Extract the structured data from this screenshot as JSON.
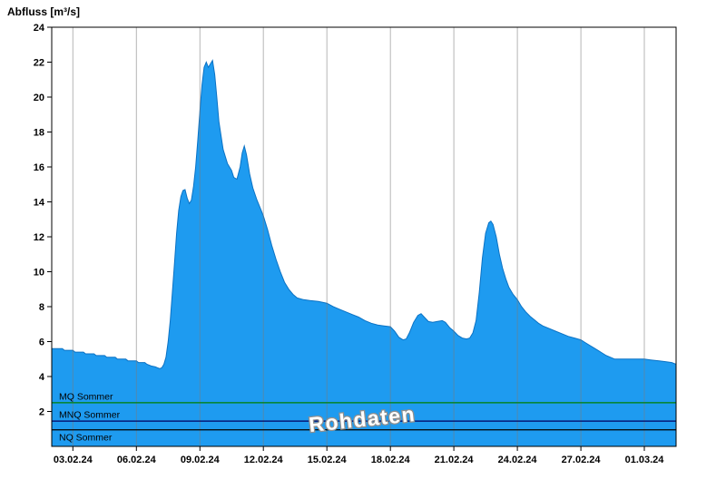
{
  "chart_data": {
    "type": "area",
    "title": "",
    "ylabel": "Abfluss [m³/s]",
    "xlabel": "",
    "ylim": [
      0,
      24
    ],
    "yticks": [
      2,
      4,
      6,
      8,
      10,
      12,
      14,
      16,
      18,
      20,
      22,
      24
    ],
    "xlim_days": [
      0,
      29.5
    ],
    "x_categories": [
      "03.02.24",
      "06.02.24",
      "09.02.24",
      "12.02.24",
      "15.02.24",
      "18.02.24",
      "21.02.24",
      "24.02.24",
      "27.02.24",
      "01.03.24"
    ],
    "x_category_days": [
      1,
      4,
      7,
      10,
      13,
      16,
      19,
      22,
      25,
      28
    ],
    "grid": "vertical-only",
    "legend": "none",
    "watermark": "Rohdaten",
    "fill_color": "#1e9bf0",
    "edge_color": "#0b72c4",
    "grid_color": "#7a7a7a",
    "reference_lines": [
      {
        "label": "MQ Sommer",
        "value": 2.5,
        "color": "#008000",
        "label_side": "above"
      },
      {
        "label": "MNQ Sommer",
        "value": 1.45,
        "color": "#000060",
        "label_side": "above"
      },
      {
        "label": "NQ Sommer",
        "value": 0.95,
        "color": "#000000",
        "label_side": "below"
      }
    ],
    "series": [
      {
        "name": "Abfluss",
        "points": [
          [
            0,
            5.6
          ],
          [
            0.5,
            5.6
          ],
          [
            0.6,
            5.5
          ],
          [
            1.0,
            5.5
          ],
          [
            1.1,
            5.4
          ],
          [
            1.5,
            5.4
          ],
          [
            1.6,
            5.3
          ],
          [
            2.0,
            5.3
          ],
          [
            2.1,
            5.2
          ],
          [
            2.5,
            5.2
          ],
          [
            2.6,
            5.1
          ],
          [
            3.0,
            5.1
          ],
          [
            3.1,
            5.0
          ],
          [
            3.5,
            5.0
          ],
          [
            3.6,
            4.9
          ],
          [
            4.0,
            4.9
          ],
          [
            4.1,
            4.8
          ],
          [
            4.4,
            4.8
          ],
          [
            4.5,
            4.7
          ],
          [
            4.7,
            4.6
          ],
          [
            4.9,
            4.55
          ],
          [
            5.0,
            4.5
          ],
          [
            5.1,
            4.45
          ],
          [
            5.2,
            4.5
          ],
          [
            5.3,
            4.7
          ],
          [
            5.4,
            5.1
          ],
          [
            5.5,
            6.0
          ],
          [
            5.6,
            7.2
          ],
          [
            5.7,
            8.8
          ],
          [
            5.8,
            10.5
          ],
          [
            5.9,
            12.2
          ],
          [
            6.0,
            13.5
          ],
          [
            6.1,
            14.3
          ],
          [
            6.2,
            14.65
          ],
          [
            6.3,
            14.7
          ],
          [
            6.4,
            14.2
          ],
          [
            6.5,
            13.9
          ],
          [
            6.6,
            14.1
          ],
          [
            6.7,
            14.9
          ],
          [
            6.8,
            16.0
          ],
          [
            6.9,
            17.5
          ],
          [
            7.0,
            19.2
          ],
          [
            7.1,
            20.7
          ],
          [
            7.2,
            21.7
          ],
          [
            7.3,
            22.0
          ],
          [
            7.4,
            21.7
          ],
          [
            7.5,
            21.9
          ],
          [
            7.6,
            22.1
          ],
          [
            7.7,
            21.3
          ],
          [
            7.8,
            20.0
          ],
          [
            7.9,
            18.6
          ],
          [
            8.1,
            17.0
          ],
          [
            8.3,
            16.2
          ],
          [
            8.5,
            15.8
          ],
          [
            8.6,
            15.4
          ],
          [
            8.75,
            15.3
          ],
          [
            8.9,
            16.0
          ],
          [
            9.0,
            16.8
          ],
          [
            9.1,
            17.2
          ],
          [
            9.2,
            16.7
          ],
          [
            9.35,
            15.6
          ],
          [
            9.5,
            14.8
          ],
          [
            9.7,
            14.1
          ],
          [
            9.9,
            13.5
          ],
          [
            10.0,
            13.2
          ],
          [
            10.2,
            12.4
          ],
          [
            10.4,
            11.5
          ],
          [
            10.6,
            10.7
          ],
          [
            10.8,
            10.0
          ],
          [
            11.0,
            9.4
          ],
          [
            11.2,
            9.0
          ],
          [
            11.4,
            8.7
          ],
          [
            11.6,
            8.5
          ],
          [
            11.9,
            8.4
          ],
          [
            12.2,
            8.35
          ],
          [
            12.6,
            8.3
          ],
          [
            13.0,
            8.2
          ],
          [
            13.3,
            8.0
          ],
          [
            13.6,
            7.85
          ],
          [
            13.9,
            7.7
          ],
          [
            14.2,
            7.55
          ],
          [
            14.5,
            7.4
          ],
          [
            14.8,
            7.2
          ],
          [
            15.1,
            7.05
          ],
          [
            15.4,
            6.95
          ],
          [
            15.7,
            6.9
          ],
          [
            16.0,
            6.85
          ],
          [
            16.2,
            6.6
          ],
          [
            16.4,
            6.25
          ],
          [
            16.6,
            6.1
          ],
          [
            16.75,
            6.15
          ],
          [
            16.9,
            6.5
          ],
          [
            17.1,
            7.1
          ],
          [
            17.3,
            7.5
          ],
          [
            17.45,
            7.6
          ],
          [
            17.6,
            7.4
          ],
          [
            17.8,
            7.15
          ],
          [
            18.0,
            7.1
          ],
          [
            18.2,
            7.15
          ],
          [
            18.45,
            7.2
          ],
          [
            18.6,
            7.1
          ],
          [
            18.8,
            6.8
          ],
          [
            19.0,
            6.6
          ],
          [
            19.2,
            6.35
          ],
          [
            19.4,
            6.2
          ],
          [
            19.6,
            6.15
          ],
          [
            19.75,
            6.2
          ],
          [
            19.9,
            6.5
          ],
          [
            20.05,
            7.2
          ],
          [
            20.2,
            8.8
          ],
          [
            20.35,
            10.8
          ],
          [
            20.5,
            12.2
          ],
          [
            20.65,
            12.8
          ],
          [
            20.75,
            12.9
          ],
          [
            20.85,
            12.7
          ],
          [
            21.0,
            12.0
          ],
          [
            21.15,
            11.0
          ],
          [
            21.3,
            10.2
          ],
          [
            21.45,
            9.6
          ],
          [
            21.6,
            9.1
          ],
          [
            21.8,
            8.7
          ],
          [
            22.0,
            8.4
          ],
          [
            22.2,
            8.0
          ],
          [
            22.4,
            7.7
          ],
          [
            22.6,
            7.45
          ],
          [
            22.8,
            7.25
          ],
          [
            23.0,
            7.05
          ],
          [
            23.2,
            6.9
          ],
          [
            23.5,
            6.75
          ],
          [
            23.8,
            6.6
          ],
          [
            24.1,
            6.45
          ],
          [
            24.4,
            6.3
          ],
          [
            24.7,
            6.2
          ],
          [
            25.0,
            6.1
          ],
          [
            25.2,
            5.95
          ],
          [
            25.4,
            5.8
          ],
          [
            25.6,
            5.65
          ],
          [
            25.8,
            5.5
          ],
          [
            26.0,
            5.35
          ],
          [
            26.2,
            5.2
          ],
          [
            26.4,
            5.1
          ],
          [
            26.6,
            5.0
          ],
          [
            27.0,
            5.0
          ],
          [
            27.5,
            5.0
          ],
          [
            28.0,
            5.0
          ],
          [
            28.3,
            4.95
          ],
          [
            28.7,
            4.9
          ],
          [
            29.0,
            4.85
          ],
          [
            29.3,
            4.8
          ],
          [
            29.5,
            4.7
          ]
        ]
      }
    ]
  }
}
